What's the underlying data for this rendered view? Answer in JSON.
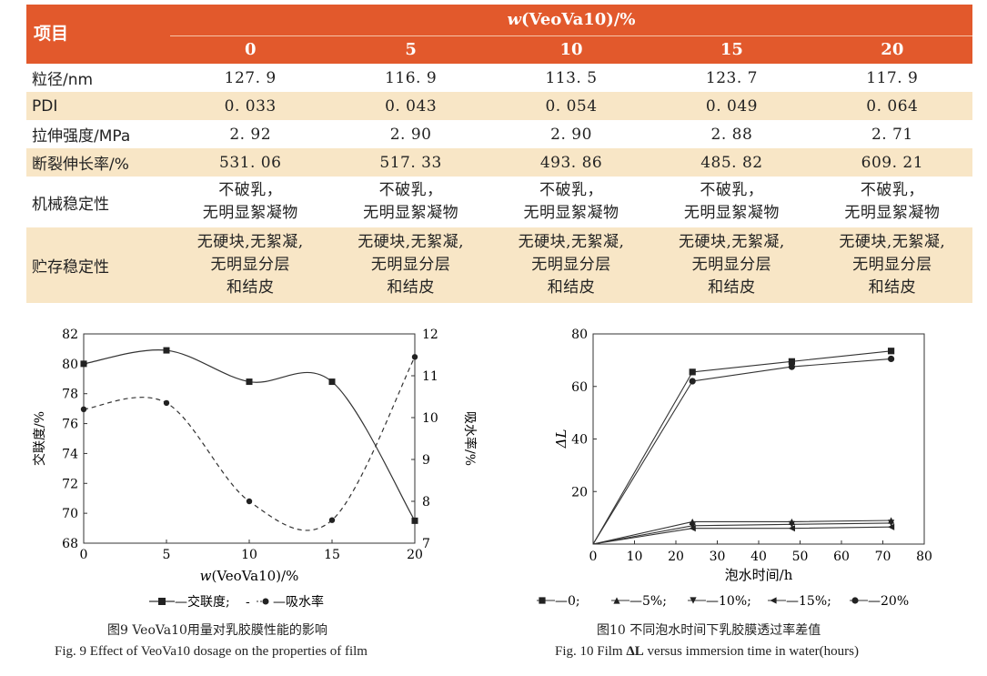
{
  "table": {
    "item_header": "项目",
    "group_header_var": "w",
    "group_header_rest": "(VeoVa10)/%",
    "columns": [
      "0",
      "5",
      "10",
      "15",
      "20"
    ],
    "rows": [
      {
        "label": "粒径/nm",
        "values": [
          "127. 9",
          "116. 9",
          "113. 5",
          "123. 7",
          "117. 9"
        ]
      },
      {
        "label": "PDI",
        "values": [
          "0. 033",
          "0. 043",
          "0. 054",
          "0. 049",
          "0. 064"
        ]
      },
      {
        "label": "拉伸强度/MPa",
        "values": [
          "2. 92",
          "2. 90",
          "2. 90",
          "2. 88",
          "2. 71"
        ]
      },
      {
        "label": "断裂伸长率/%",
        "values": [
          "531. 06",
          "517. 33",
          "493. 86",
          "485. 82",
          "609. 21"
        ]
      },
      {
        "label": "机械稳定性",
        "values": [
          "不破乳，\n无明显絮凝物",
          "不破乳，\n无明显絮凝物",
          "不破乳，\n无明显絮凝物",
          "不破乳，\n无明显絮凝物",
          "不破乳，\n无明显絮凝物"
        ]
      },
      {
        "label": "贮存稳定性",
        "values": [
          "无硬块,无絮凝,\n无明显分层\n和结皮",
          "无硬块,无絮凝,\n无明显分层\n和结皮",
          "无硬块,无絮凝,\n无明显分层\n和结皮",
          "无硬块,无絮凝,\n无明显分层\n和结皮",
          "无硬块,无絮凝,\n无明显分层\n和结皮"
        ]
      }
    ]
  },
  "fig9": {
    "caption_cn": "图9   VeoVa10用量对乳胶膜性能的影响",
    "caption_en": "Fig. 9   Effect of VeoVa10 dosage on the properties of film",
    "legend_a": "—交联度;",
    "legend_b": "—吸水率",
    "legend_dash": "-",
    "colors": {
      "line": "#333333"
    }
  },
  "fig10": {
    "caption_cn": "图10   不同泡水时间下乳胶膜透过率差值",
    "caption_en_pre": "Fig. 10   Film ",
    "caption_en_delta": "ΔL",
    "caption_en_post": " versus immersion time in water(hours)",
    "legend": [
      "—0;",
      "—5%;",
      "—10%;",
      "—15%;",
      "—20%"
    ]
  },
  "chart_data": [
    {
      "type": "line",
      "xlabel": "w(VeoVa10)/%",
      "ylabel": "交联度/%",
      "y2label": "吸水率/%",
      "xlim": [
        0,
        20
      ],
      "ylim": [
        68,
        82
      ],
      "y2lim": [
        7,
        12
      ],
      "x_ticks": [
        0,
        5,
        10,
        15,
        20
      ],
      "y_ticks": [
        68,
        70,
        72,
        74,
        76,
        78,
        80,
        82
      ],
      "y2_ticks": [
        7,
        8,
        9,
        10,
        11,
        12
      ],
      "series": [
        {
          "name": "交联度",
          "axis": "left",
          "marker": "square",
          "style": "solid",
          "x": [
            0,
            5,
            10,
            15,
            20
          ],
          "y": [
            80.0,
            80.9,
            78.8,
            78.8,
            69.5
          ]
        },
        {
          "name": "吸水率",
          "axis": "right",
          "marker": "circle",
          "style": "dashed",
          "x": [
            0,
            5,
            10,
            15,
            20
          ],
          "y": [
            10.2,
            10.35,
            8.0,
            7.55,
            11.45
          ]
        }
      ]
    },
    {
      "type": "line",
      "xlabel": "泡水时间/h",
      "ylabel": "ΔL",
      "xlim": [
        0,
        80
      ],
      "ylim": [
        0,
        80
      ],
      "x_ticks": [
        0,
        10,
        20,
        30,
        40,
        50,
        60,
        70,
        80
      ],
      "y_ticks": [
        20,
        40,
        60,
        80
      ],
      "series": [
        {
          "name": "0",
          "marker": "square",
          "x": [
            0,
            24,
            48,
            72
          ],
          "y": [
            0,
            65.5,
            69.5,
            73.5
          ]
        },
        {
          "name": "5%",
          "marker": "triangle-up",
          "x": [
            0,
            24,
            48,
            72
          ],
          "y": [
            0,
            8.5,
            8.5,
            9.0
          ]
        },
        {
          "name": "10%",
          "marker": "triangle-down",
          "x": [
            0,
            24,
            48,
            72
          ],
          "y": [
            0,
            7.0,
            7.5,
            8.0
          ]
        },
        {
          "name": "15%",
          "marker": "triangle-left",
          "x": [
            0,
            24,
            48,
            72
          ],
          "y": [
            0,
            6.0,
            6.0,
            6.5
          ]
        },
        {
          "name": "20%",
          "marker": "circle",
          "x": [
            0,
            24,
            48,
            72
          ],
          "y": [
            0,
            62.0,
            67.5,
            70.5
          ]
        }
      ]
    }
  ]
}
